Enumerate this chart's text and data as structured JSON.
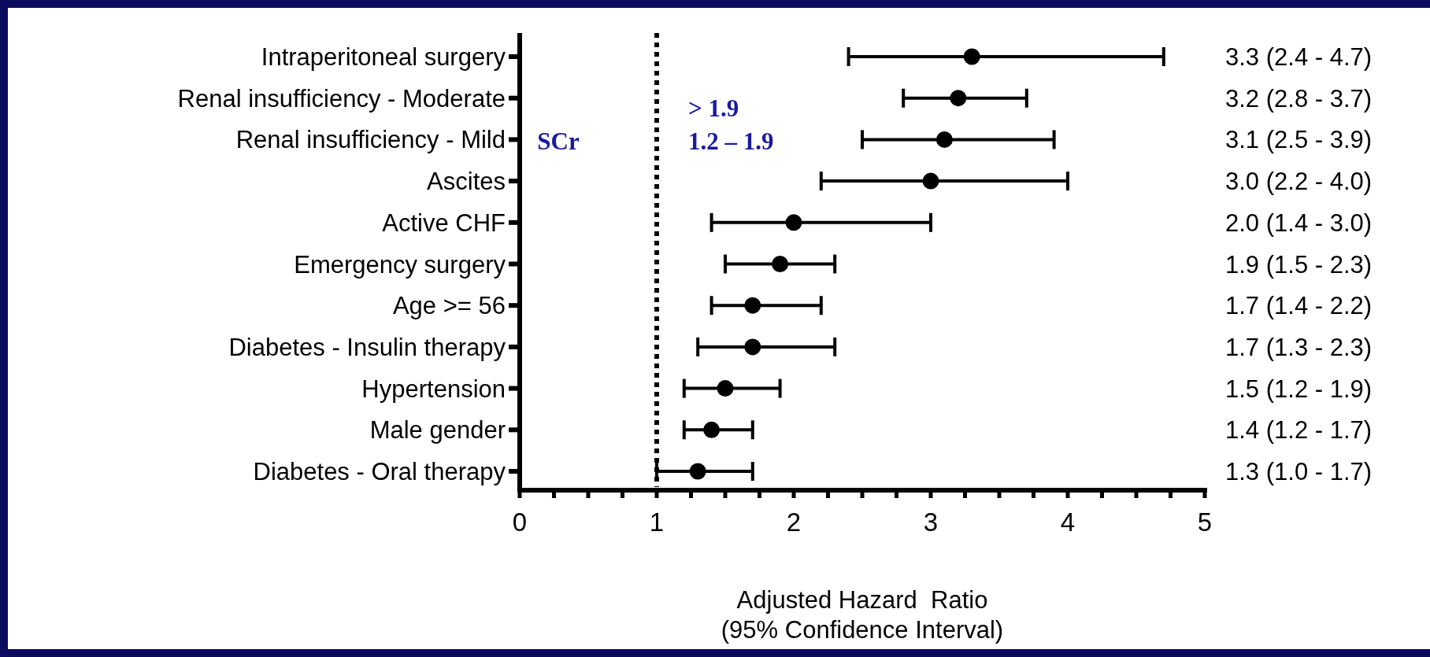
{
  "chart_data": {
    "type": "scatter",
    "orientation": "horizontal",
    "marker": "circle",
    "color": "#000000",
    "categories": [
      "Intraperitoneal surgery",
      "Renal insufficiency - Moderate",
      "Renal insufficiency - Mild",
      "Ascites",
      "Active CHF",
      "Emergency surgery",
      "Age >= 56",
      "Diabetes - Insulin therapy",
      "Hypertension",
      "Male gender",
      "Diabetes - Oral therapy"
    ],
    "values": [
      3.3,
      3.2,
      3.1,
      3.0,
      2.0,
      1.9,
      1.7,
      1.7,
      1.5,
      1.4,
      1.3
    ],
    "errors": [
      [
        2.4,
        4.7
      ],
      [
        2.8,
        3.7
      ],
      [
        2.5,
        3.9
      ],
      [
        2.2,
        4.0
      ],
      [
        1.4,
        3.0
      ],
      [
        1.5,
        2.3
      ],
      [
        1.4,
        2.2
      ],
      [
        1.3,
        2.3
      ],
      [
        1.2,
        1.9
      ],
      [
        1.2,
        1.7
      ],
      [
        1.0,
        1.7
      ]
    ],
    "value_labels": [
      "3.3 (2.4 - 4.7)",
      "3.2 (2.8 - 3.7)",
      "3.1 (2.5 - 3.9)",
      "3.0 (2.2 - 4.0)",
      "2.0 (1.4 - 3.0)",
      "1.9 (1.5 - 2.3)",
      "1.7 (1.4 - 2.2)",
      "1.7 (1.3 - 2.3)",
      "1.5 (1.2 - 1.9)",
      "1.4 (1.2 - 1.7)",
      "1.3 (1.0 - 1.7)"
    ],
    "xlim": [
      0,
      5
    ],
    "xticks": [
      0,
      {
        "value": 0.25,
        "label": null
      },
      {
        "value": 0.5,
        "label": null
      },
      {
        "value": 0.75,
        "label": null
      },
      1,
      {
        "value": 1.25,
        "label": null
      },
      {
        "value": 1.5,
        "label": null
      },
      {
        "value": 1.75,
        "label": null
      },
      2,
      {
        "value": 2.25,
        "label": null
      },
      {
        "value": 2.5,
        "label": null
      },
      {
        "value": 2.75,
        "label": null
      },
      3,
      {
        "value": 3.25,
        "label": null
      },
      {
        "value": 3.5,
        "label": null
      },
      {
        "value": 3.75,
        "label": null
      },
      4,
      {
        "value": 4.25,
        "label": null
      },
      {
        "value": 4.5,
        "label": null
      },
      {
        "value": 4.75,
        "label": null
      },
      5
    ],
    "xlabel": "Adjusted Hazard  Ratio\n(95% Confidence Interval)",
    "ref_lines": [
      {
        "axis": "x",
        "value": 1,
        "line_style": "dotted",
        "color": "#000000"
      }
    ],
    "annotations": [
      "SCr",
      "> 1.9",
      "1.2 – 1.9"
    ],
    "grid": false
  }
}
